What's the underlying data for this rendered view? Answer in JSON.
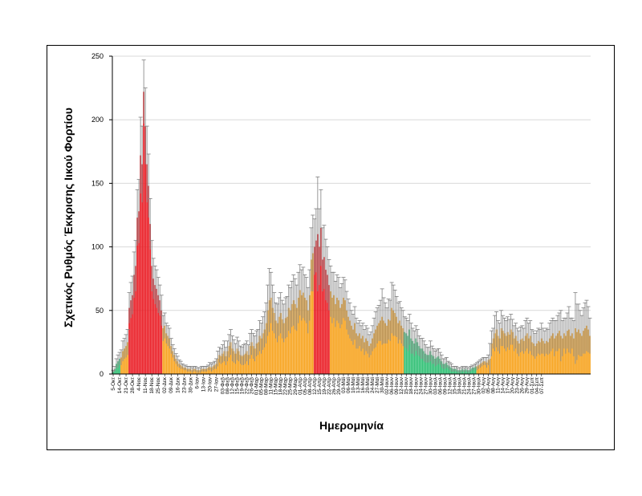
{
  "chart_data": {
    "type": "bar",
    "xlabel": "Ημερομηνία",
    "ylabel": "Σχετικός Ρυθμός Έκκρισης Ιικού Φορτίου",
    "ylim": [
      0,
      250
    ],
    "yticks": [
      0,
      50,
      100,
      150,
      200,
      250
    ],
    "grid": true,
    "colors": {
      "red": "#ea1c24",
      "orange": "#f7a21b",
      "green": "#2ebf73",
      "error": "#7f7f7f",
      "grid": "#d9d9d9"
    },
    "tick_labels": [
      "5-Οκτ",
      "14-Οκτ",
      "21-Οκτ",
      "28-Οκτ",
      "4-Νοε",
      "11-Νοε",
      "18-Νοε",
      "25-Νοε",
      "02-Δεκ",
      "09-Δεκ",
      "16-Δεκ",
      "23-Δεκ",
      "30-Δεκ",
      "6-Ιαν",
      "13-Ιαν",
      "20-Ιαν",
      "27-Ιαν",
      "03-Φεβ",
      "08-Φεβ",
      "12-Φεβ",
      "15-Φεβ",
      "19-Φεβ",
      "22-Φεβ",
      "26-Φεβ",
      "01-Μαρ",
      "05-Μαρ",
      "08-Μαρ",
      "11-Μαρ",
      "15-Μαρ",
      "18-Μαρ",
      "22-Μαρ",
      "25-Μαρ",
      "29-Μαρ",
      "01-Απρ",
      "05-Απρ",
      "08-Απρ",
      "12-Απρ",
      "15-Απρ",
      "19-Απρ",
      "22-Απρ",
      "26-Απρ",
      "29-Απρ",
      "03-Μαϊ",
      "06-Μαϊ",
      "10-Μαϊ",
      "13-Μαϊ",
      "16-Μαϊ",
      "20-Μαϊ",
      "24-Μαϊ",
      "27-Μαϊ",
      "30-Μαϊ",
      "02-Ιουν",
      "06-Ιουν",
      "09-Ιουν",
      "12-Ιουν",
      "15-Ιουν",
      "18-Ιουν",
      "21-Ιουν",
      "24-Ιουν",
      "27-Ιουν",
      "30-Ιουν",
      "03-Ιουλ",
      "06-Ιουλ",
      "09-Ιουλ",
      "12-Ιουλ",
      "15-Ιουλ",
      "18-Ιουλ",
      "21-Ιουλ",
      "24-Ιουλ",
      "27-Ιουλ",
      "30-Ιουλ",
      "02-Αυγ",
      "05-Αυγ",
      "08-Αυγ",
      "11-Αυγ",
      "14-Αυγ",
      "17-Αυγ",
      "20-Αυγ",
      "23-Αυγ",
      "26-Αυγ",
      "29-Αυγ",
      "01-Σεπ",
      "04-Σεπ",
      "07-Σεπ"
    ],
    "tick_bar_index": [
      0,
      4,
      8,
      12,
      16,
      20,
      24,
      28,
      32,
      36,
      40,
      44,
      48,
      52,
      56,
      60,
      64,
      68,
      71,
      74,
      77,
      80,
      83,
      86,
      89,
      92,
      95,
      98,
      101,
      104,
      107,
      110,
      113,
      116,
      119,
      122,
      125,
      128,
      131,
      134,
      137,
      140,
      143,
      146,
      149,
      152,
      155,
      158,
      161,
      164,
      167,
      170,
      173,
      176,
      179,
      182,
      185,
      188,
      191,
      194,
      197,
      200,
      203,
      206,
      209,
      212,
      215,
      218,
      221,
      224,
      227,
      230,
      233,
      236,
      239,
      242,
      245,
      248,
      251,
      254,
      257,
      260,
      263,
      266
    ],
    "values": [
      2,
      4,
      8,
      10,
      12,
      13,
      18,
      20,
      22,
      25,
      52,
      58,
      62,
      78,
      85,
      123,
      128,
      172,
      165,
      222,
      195,
      165,
      148,
      118,
      85,
      75,
      70,
      67,
      62,
      58,
      50,
      36,
      38,
      32,
      30,
      28,
      22,
      18,
      15,
      12,
      10,
      8,
      7,
      6,
      5,
      5,
      4,
      4,
      4,
      3,
      4,
      4,
      3,
      3,
      3,
      4,
      4,
      4,
      4,
      5,
      6,
      5,
      6,
      7,
      8,
      12,
      15,
      14,
      16,
      18,
      14,
      18,
      22,
      25,
      20,
      18,
      16,
      20,
      18,
      15,
      14,
      15,
      16,
      18,
      15,
      22,
      25,
      22,
      20,
      24,
      25,
      30,
      28,
      32,
      35,
      40,
      50,
      58,
      60,
      52,
      48,
      42,
      40,
      45,
      48,
      43,
      40,
      44,
      45,
      52,
      50,
      55,
      58,
      55,
      52,
      60,
      66,
      62,
      64,
      60,
      58,
      50,
      62,
      90,
      95,
      100,
      105,
      110,
      100,
      115,
      90,
      92,
      82,
      78,
      70,
      65,
      60,
      62,
      55,
      60,
      58,
      52,
      55,
      60,
      58,
      50,
      45,
      42,
      38,
      35,
      40,
      32,
      30,
      32,
      28,
      30,
      25,
      28,
      26,
      22,
      24,
      28,
      32,
      35,
      38,
      40,
      42,
      45,
      42,
      40,
      38,
      43,
      42,
      52,
      50,
      48,
      45,
      40,
      42,
      38,
      36,
      33,
      32,
      30,
      35,
      28,
      26,
      24,
      28,
      25,
      22,
      20,
      20,
      18,
      16,
      15,
      15,
      18,
      15,
      14,
      12,
      13,
      14,
      12,
      10,
      8,
      8,
      9,
      7,
      6,
      5,
      4,
      4,
      4,
      3,
      3,
      3,
      4,
      3,
      4,
      3,
      3,
      4,
      5,
      5,
      6,
      6,
      7,
      8,
      9,
      10,
      10,
      9,
      11,
      12,
      24,
      28,
      32,
      35,
      30,
      28,
      36,
      34,
      32,
      30,
      33,
      31,
      35,
      33,
      28,
      30,
      26,
      24,
      27,
      28,
      26,
      30,
      32,
      28,
      30,
      25,
      24,
      22,
      24,
      26,
      25,
      28,
      26,
      24,
      26,
      25,
      28,
      30,
      32,
      28,
      30,
      32,
      34,
      30,
      28,
      32,
      30,
      34,
      35,
      30,
      32,
      28,
      36,
      33,
      35,
      32,
      30,
      34,
      36,
      38,
      35,
      30
    ],
    "error_plus": [
      1,
      2,
      4,
      5,
      5,
      6,
      8,
      8,
      9,
      10,
      12,
      14,
      15,
      18,
      20,
      22,
      25,
      30,
      30,
      25,
      30,
      30,
      25,
      20,
      20,
      16,
      15,
      15,
      14,
      12,
      12,
      10,
      10,
      8,
      8,
      8,
      6,
      5,
      5,
      4,
      4,
      3,
      3,
      2,
      2,
      2,
      2,
      2,
      2,
      2,
      2,
      2,
      2,
      2,
      2,
      2,
      2,
      2,
      2,
      2,
      3,
      3,
      3,
      3,
      4,
      6,
      6,
      6,
      7,
      8,
      7,
      8,
      9,
      10,
      10,
      9,
      8,
      9,
      8,
      7,
      7,
      8,
      8,
      8,
      8,
      10,
      10,
      10,
      10,
      10,
      10,
      12,
      12,
      13,
      14,
      16,
      20,
      25,
      20,
      18,
      16,
      14,
      15,
      15,
      16,
      15,
      15,
      16,
      16,
      18,
      18,
      18,
      20,
      20,
      18,
      20,
      20,
      20,
      20,
      18,
      18,
      18,
      20,
      25,
      30,
      22,
      25,
      45,
      30,
      30,
      25,
      25,
      24,
      22,
      20,
      20,
      20,
      18,
      18,
      18,
      18,
      16,
      16,
      16,
      16,
      15,
      14,
      14,
      12,
      12,
      13,
      12,
      10,
      10,
      10,
      10,
      10,
      10,
      10,
      9,
      9,
      10,
      12,
      14,
      14,
      14,
      16,
      22,
      18,
      16,
      14,
      16,
      16,
      20,
      20,
      18,
      16,
      16,
      15,
      14,
      14,
      12,
      12,
      12,
      12,
      12,
      10,
      10,
      10,
      10,
      8,
      8,
      8,
      8,
      7,
      6,
      6,
      8,
      7,
      6,
      6,
      6,
      6,
      5,
      5,
      4,
      4,
      4,
      3,
      3,
      3,
      2,
      2,
      2,
      2,
      2,
      2,
      2,
      2,
      2,
      2,
      2,
      2,
      2,
      2,
      2,
      3,
      3,
      3,
      3,
      3,
      3,
      4,
      4,
      12,
      10,
      8,
      14,
      14,
      12,
      12,
      14,
      12,
      12,
      12,
      12,
      12,
      12,
      10,
      10,
      10,
      10,
      10,
      10,
      10,
      10,
      12,
      12,
      12,
      12,
      10,
      10,
      10,
      10,
      10,
      10,
      12,
      10,
      10,
      10,
      10,
      12,
      12,
      12,
      14,
      12,
      14,
      14,
      20,
      14,
      12,
      14,
      14,
      18,
      14,
      12,
      14,
      28,
      22,
      20,
      18,
      16,
      18,
      20,
      20,
      18,
      14,
      12
    ],
    "red_ranges": [
      [
        10,
        30
      ],
      [
        125,
        134
      ]
    ],
    "green_ranges": [
      [
        0,
        4
      ],
      [
        181,
        225
      ]
    ]
  }
}
